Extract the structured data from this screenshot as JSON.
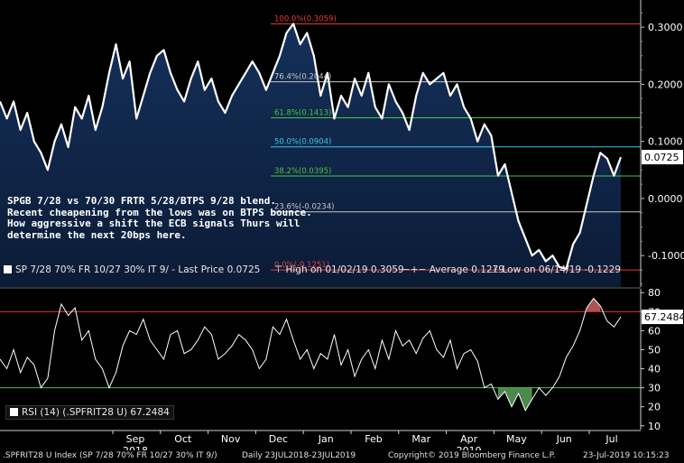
{
  "chart_data": [
    {
      "type": "area",
      "title": "",
      "x_ticks": [
        "Sep",
        "Oct",
        "Nov",
        "Dec",
        "Jan",
        "Feb",
        "Mar",
        "Apr",
        "May",
        "Jun",
        "Jul"
      ],
      "year_labels": [
        {
          "label": "2018",
          "under": "Sep"
        },
        {
          "label": "2019",
          "under": "Apr"
        }
      ],
      "ylim": [
        -0.155,
        0.335
      ],
      "y_ticks": [
        {
          "value": 0.3,
          "label": "0.3000"
        },
        {
          "value": 0.2,
          "label": "0.2000"
        },
        {
          "value": 0.1,
          "label": "0.1000"
        },
        {
          "value": 0.0,
          "label": "0.0000"
        },
        {
          "value": -0.1,
          "label": "-0.1000"
        }
      ],
      "last_value_label": "0.0725",
      "last_value": 0.0725,
      "fibonacci_levels": [
        {
          "value": 0.3059,
          "label": "100.0%(0.3059)",
          "color": "#e83b3b"
        },
        {
          "value": 0.2044,
          "label": "76.4%(0.2044)",
          "color": "#c8c8c8"
        },
        {
          "value": 0.1413,
          "label": "61.8%(0.1413)",
          "color": "#46c646"
        },
        {
          "value": 0.0904,
          "label": "50.0%(0.0904)",
          "color": "#3ec8e8"
        },
        {
          "value": 0.0395,
          "label": "38.2%(0.0395)",
          "color": "#46c646"
        },
        {
          "value": -0.0234,
          "label": "23.6%(-0.0234)",
          "color": "#c8c8c8"
        },
        {
          "value": -0.1251,
          "label": "0.0%(-0.1251)",
          "color": "#e83b3b"
        }
      ],
      "series": [
        {
          "values": [
            0.17,
            0.14,
            0.17,
            0.12,
            0.15,
            0.1,
            0.08,
            0.05,
            0.1,
            0.13,
            0.09,
            0.16,
            0.14,
            0.18,
            0.12,
            0.16,
            0.22,
            0.27,
            0.21,
            0.24,
            0.14,
            0.18,
            0.22,
            0.25,
            0.26,
            0.22,
            0.19,
            0.17,
            0.21,
            0.24,
            0.19,
            0.21,
            0.17,
            0.15,
            0.18,
            0.2,
            0.22,
            0.24,
            0.22,
            0.19,
            0.22,
            0.25,
            0.29,
            0.3059,
            0.27,
            0.29,
            0.25,
            0.18,
            0.22,
            0.14,
            0.18,
            0.16,
            0.21,
            0.18,
            0.22,
            0.16,
            0.14,
            0.2,
            0.17,
            0.15,
            0.12,
            0.18,
            0.22,
            0.2,
            0.21,
            0.22,
            0.18,
            0.2,
            0.16,
            0.14,
            0.1,
            0.13,
            0.11,
            0.04,
            0.06,
            0.01,
            -0.04,
            -0.07,
            -0.1,
            -0.09,
            -0.11,
            -0.1,
            -0.12,
            -0.1229,
            -0.08,
            -0.06,
            -0.01,
            0.04,
            0.08,
            0.07,
            0.04,
            0.0725
          ]
        }
      ],
      "legend": {
        "series_label": "SP 7/28 70% FR 10/27 30% IT 9/ - Last Price 0.0725",
        "high_label": "High on 01/02/19 0.3059",
        "average_label": "Average 0.1279",
        "low_label": "Low on 06/14/19 -0.1229"
      },
      "colors": {
        "area_top": "#15305a",
        "area_bottom": "#0b1b36",
        "line": "#ffffff"
      }
    },
    {
      "type": "line",
      "title": "",
      "ylim": [
        8,
        82
      ],
      "y_ticks": [
        {
          "value": 80,
          "label": "80"
        },
        {
          "value": 70,
          "label": "70"
        },
        {
          "value": 60,
          "label": "60"
        },
        {
          "value": 50,
          "label": "50"
        },
        {
          "value": 40,
          "label": "40"
        },
        {
          "value": 30,
          "label": "30"
        },
        {
          "value": 20,
          "label": "20"
        },
        {
          "value": 10,
          "label": "10"
        }
      ],
      "overbought": 70,
      "oversold": 30,
      "last_value_label": "67.2484",
      "last_value": 67.2484,
      "series": [
        {
          "name": "RSI (14) (.SPFRIT28 U) 67.2484",
          "values": [
            45,
            40,
            50,
            38,
            46,
            42,
            30,
            35,
            60,
            74,
            68,
            72,
            55,
            60,
            45,
            40,
            30,
            38,
            52,
            60,
            58,
            66,
            55,
            50,
            45,
            58,
            60,
            48,
            50,
            55,
            62,
            58,
            45,
            48,
            52,
            58,
            55,
            50,
            40,
            45,
            62,
            58,
            66,
            55,
            45,
            50,
            40,
            48,
            45,
            58,
            42,
            50,
            36,
            45,
            50,
            40,
            55,
            45,
            60,
            52,
            55,
            48,
            56,
            60,
            50,
            46,
            55,
            40,
            48,
            50,
            44,
            30,
            32,
            24,
            28,
            20,
            27,
            18,
            24,
            30,
            26,
            30,
            36,
            46,
            52,
            60,
            72,
            77,
            73,
            65,
            62,
            67.2484
          ]
        }
      ],
      "legend_label": "RSI (14) (.SPFRIT28 U) 67.2484",
      "colors": {
        "overbought": "#e83b3b",
        "oversold": "#46c646",
        "oversold_fill": "#5aa05a",
        "overbought_fill": "#c86464"
      }
    }
  ],
  "annotation": {
    "lines": [
      "SPGB 7/28 vs 70/30 FRTR 5/28/BTPS 9/28 blend.",
      "Recent cheapening from the lows was on BTPS bounce.",
      "How aggressive a shift the ECB signals Thurs will",
      "determine the next 20bps here."
    ]
  },
  "footer": {
    "security": ".SPFRIT28 U Index (SP 7/28 70% FR 10/27 30% IT 9/)",
    "range": "Daily 23JUL2018-23JUL2019",
    "copyright": "Copyright© 2019 Bloomberg Finance L.P.",
    "timestamp": "23-Jul-2019 10:15:23"
  }
}
